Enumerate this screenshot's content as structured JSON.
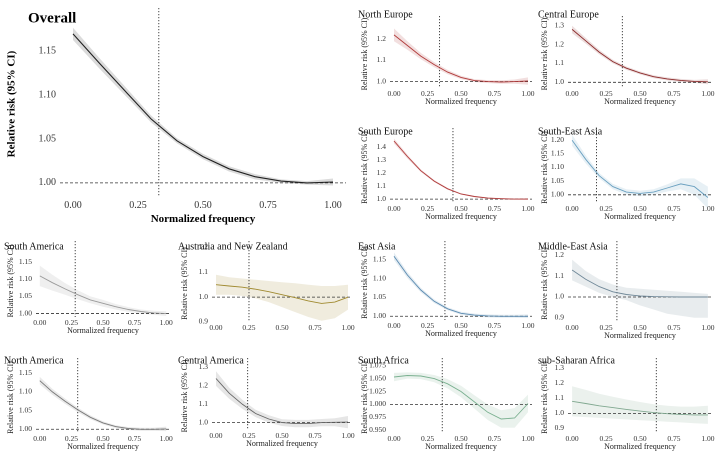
{
  "chart_data": [
    {
      "type": "line",
      "title": "Overall",
      "xlabel": "Normalized frequency",
      "ylabel": "Relative risk (95% CI)",
      "xlim": [
        -0.05,
        1.05
      ],
      "ylim": [
        0.985,
        1.195
      ],
      "xticks": [
        0,
        0.25,
        0.5,
        0.75,
        1
      ],
      "xtick_labels": [
        "0.00",
        "0.25",
        "0.50",
        "0.75",
        "1.00"
      ],
      "yticks": [
        1.0,
        1.05,
        1.1,
        1.15
      ],
      "ytick_labels": [
        "1.00",
        "1.05",
        "1.10",
        "1.15"
      ],
      "vline": 0.33,
      "ref": 1.0,
      "color": "#222222",
      "x": [
        0,
        0.1,
        0.2,
        0.3,
        0.4,
        0.5,
        0.6,
        0.7,
        0.8,
        0.9,
        1.0
      ],
      "y": [
        1.17,
        1.137,
        1.105,
        1.073,
        1.048,
        1.03,
        1.016,
        1.007,
        1.002,
        1.0,
        1.001
      ],
      "lower": [
        1.163,
        1.131,
        1.1,
        1.069,
        1.045,
        1.027,
        1.013,
        1.004,
        1.0,
        0.998,
        0.997
      ],
      "upper": [
        1.177,
        1.143,
        1.11,
        1.077,
        1.051,
        1.033,
        1.019,
        1.01,
        1.004,
        1.002,
        1.005
      ]
    },
    {
      "type": "line",
      "title": "North Europe",
      "xlabel": "Normalized frequency",
      "ylabel": "Relative risk (95% CI)",
      "xlim": [
        -0.03,
        1.03
      ],
      "ylim": [
        0.97,
        1.29
      ],
      "xticks": [
        0,
        0.25,
        0.5,
        0.75,
        1
      ],
      "xtick_labels": [
        "0.00",
        "0.25",
        "0.50",
        "0.75",
        "1.00"
      ],
      "yticks": [
        1.0,
        1.1,
        1.2
      ],
      "ytick_labels": [
        "1.0",
        "1.1",
        "1.2"
      ],
      "vline": 0.34,
      "ref": 1.0,
      "color": "#b03a3a",
      "x": [
        0,
        0.1,
        0.2,
        0.3,
        0.4,
        0.5,
        0.6,
        0.7,
        0.8,
        0.9,
        1.0
      ],
      "y": [
        1.22,
        1.17,
        1.12,
        1.08,
        1.045,
        1.02,
        1.005,
        1.0,
        0.998,
        1.0,
        1.003
      ],
      "lower": [
        1.19,
        1.15,
        1.105,
        1.068,
        1.035,
        1.012,
        0.998,
        0.993,
        0.99,
        0.99,
        0.985
      ],
      "upper": [
        1.25,
        1.19,
        1.135,
        1.092,
        1.055,
        1.028,
        1.012,
        1.007,
        1.006,
        1.01,
        1.02
      ]
    },
    {
      "type": "line",
      "title": "Central Europe",
      "xlabel": "Normalized frequency",
      "ylabel": "Relative risk (95% CI)",
      "xlim": [
        -0.03,
        1.03
      ],
      "ylim": [
        0.97,
        1.33
      ],
      "xticks": [
        0,
        0.25,
        0.5,
        0.75,
        1
      ],
      "xtick_labels": [
        "0.00",
        "0.25",
        "0.50",
        "0.75",
        "1.00"
      ],
      "yticks": [
        1.0,
        1.1,
        1.2,
        1.3
      ],
      "ytick_labels": [
        "1.0",
        "1.1",
        "1.2",
        "1.3"
      ],
      "vline": 0.37,
      "ref": 1.0,
      "color": "#8b2a2a",
      "x": [
        0,
        0.1,
        0.2,
        0.3,
        0.4,
        0.5,
        0.6,
        0.7,
        0.8,
        0.9,
        1.0
      ],
      "y": [
        1.28,
        1.22,
        1.16,
        1.11,
        1.075,
        1.05,
        1.03,
        1.018,
        1.01,
        1.005,
        1.003
      ],
      "lower": [
        1.26,
        1.205,
        1.148,
        1.1,
        1.066,
        1.042,
        1.022,
        1.01,
        1.002,
        0.997,
        0.99
      ],
      "upper": [
        1.3,
        1.235,
        1.172,
        1.12,
        1.084,
        1.058,
        1.038,
        1.026,
        1.018,
        1.013,
        1.016
      ]
    },
    {
      "type": "line",
      "title": "South Europe",
      "xlabel": "Normalized frequency",
      "ylabel": "Relative risk (95% CI)",
      "xlim": [
        -0.03,
        1.03
      ],
      "ylim": [
        0.97,
        1.52
      ],
      "xticks": [
        0,
        0.25,
        0.5,
        0.75,
        1
      ],
      "xtick_labels": [
        "0.00",
        "0.25",
        "0.50",
        "0.75",
        "1.00"
      ],
      "yticks": [
        1.0,
        1.1,
        1.2,
        1.3,
        1.4
      ],
      "ytick_labels": [
        "1.0",
        "1.1",
        "1.2",
        "1.3",
        "1.4"
      ],
      "vline": 0.44,
      "ref": 1.0,
      "color": "#b03a3a",
      "x": [
        0,
        0.1,
        0.2,
        0.3,
        0.4,
        0.5,
        0.6,
        0.7,
        0.8,
        0.9,
        1.0
      ],
      "y": [
        1.45,
        1.33,
        1.22,
        1.14,
        1.08,
        1.04,
        1.02,
        1.008,
        1.003,
        1.0,
        1.0
      ],
      "lower": [
        1.43,
        1.315,
        1.21,
        1.132,
        1.073,
        1.035,
        1.015,
        1.003,
        0.998,
        0.995,
        0.993
      ],
      "upper": [
        1.47,
        1.345,
        1.23,
        1.148,
        1.087,
        1.045,
        1.025,
        1.013,
        1.008,
        1.005,
        1.007
      ]
    },
    {
      "type": "line",
      "title": "South-East Asia",
      "xlabel": "Normalized frequency",
      "ylabel": "Relative risk (95% CI)",
      "xlim": [
        -0.03,
        1.03
      ],
      "ylim": [
        0.97,
        1.23
      ],
      "xticks": [
        0,
        0.25,
        0.5,
        0.75,
        1
      ],
      "xtick_labels": [
        "0.00",
        "0.25",
        "0.50",
        "0.75",
        "1.00"
      ],
      "yticks": [
        1.0,
        1.05,
        1.1,
        1.15,
        1.2
      ],
      "ytick_labels": [
        "1.00",
        "1.05",
        "1.10",
        "1.15",
        "1.20"
      ],
      "vline": 0.18,
      "ref": 1.0,
      "color": "#6aa0c0",
      "x": [
        0,
        0.1,
        0.2,
        0.3,
        0.4,
        0.5,
        0.6,
        0.7,
        0.8,
        0.9,
        1.0
      ],
      "y": [
        1.2,
        1.13,
        1.07,
        1.03,
        1.01,
        1.005,
        1.01,
        1.025,
        1.04,
        1.03,
        0.99
      ],
      "lower": [
        1.18,
        1.115,
        1.06,
        1.02,
        1.0,
        0.995,
        1.0,
        1.012,
        1.02,
        1.0,
        0.95
      ],
      "upper": [
        1.22,
        1.145,
        1.08,
        1.04,
        1.02,
        1.015,
        1.02,
        1.038,
        1.06,
        1.06,
        1.03
      ]
    },
    {
      "type": "line",
      "title": "South America",
      "xlabel": "Normalized frequency",
      "ylabel": "Relative risk (95% CI)",
      "xlim": [
        -0.03,
        1.03
      ],
      "ylim": [
        0.99,
        1.2
      ],
      "xticks": [
        0,
        0.25,
        0.5,
        0.75,
        1
      ],
      "xtick_labels": [
        "0.00",
        "0.25",
        "0.50",
        "0.75",
        "1.00"
      ],
      "yticks": [
        1.0,
        1.05,
        1.1,
        1.15
      ],
      "ytick_labels": [
        "1.00",
        "1.05",
        "1.10",
        "1.15"
      ],
      "vline": 0.28,
      "ref": 1.0,
      "color": "#9a9a9a",
      "x": [
        0,
        0.1,
        0.2,
        0.3,
        0.4,
        0.5,
        0.6,
        0.7,
        0.8,
        0.9,
        1.0
      ],
      "y": [
        1.11,
        1.09,
        1.072,
        1.055,
        1.04,
        1.03,
        1.02,
        1.012,
        1.006,
        1.002,
        1.0
      ],
      "lower": [
        1.08,
        1.067,
        1.055,
        1.042,
        1.03,
        1.02,
        1.012,
        1.005,
        1.0,
        0.996,
        0.993
      ],
      "upper": [
        1.14,
        1.113,
        1.089,
        1.068,
        1.05,
        1.04,
        1.028,
        1.019,
        1.012,
        1.008,
        1.007
      ]
    },
    {
      "type": "line",
      "title": "Australia and New Zealand",
      "xlabel": "",
      "ylabel": "Relative risk (95% CI)",
      "xlim": [
        -0.03,
        1.03
      ],
      "ylim": [
        0.9,
        1.21
      ],
      "xticks": [
        0,
        0.25,
        0.5,
        0.75,
        1
      ],
      "xtick_labels": [
        "0.00",
        "0.25",
        "0.50",
        "0.75",
        "1.00"
      ],
      "yticks": [
        0.9,
        1.0,
        1.1,
        1.2
      ],
      "ytick_labels": [
        "0.9",
        "1.0",
        "1.1",
        "1.2"
      ],
      "vline": 0.25,
      "ref": 1.0,
      "color": "#a08a30",
      "x": [
        0,
        0.1,
        0.2,
        0.3,
        0.4,
        0.5,
        0.6,
        0.7,
        0.8,
        0.9,
        1.0
      ],
      "y": [
        1.05,
        1.045,
        1.04,
        1.032,
        1.022,
        1.01,
        0.998,
        0.985,
        0.975,
        0.98,
        1.0
      ],
      "lower": [
        1.01,
        1.01,
        1.005,
        0.995,
        0.98,
        0.96,
        0.94,
        0.92,
        0.905,
        0.915,
        0.95
      ],
      "upper": [
        1.09,
        1.08,
        1.075,
        1.07,
        1.065,
        1.06,
        1.056,
        1.05,
        1.045,
        1.045,
        1.05
      ]
    },
    {
      "type": "line",
      "title": "East Asia",
      "xlabel": "Normalized frequency",
      "ylabel": "Relative risk (95% CI)",
      "xlim": [
        -0.03,
        1.03
      ],
      "ylim": [
        0.99,
        1.19
      ],
      "xticks": [
        0,
        0.25,
        0.5,
        0.75,
        1
      ],
      "xtick_labels": [
        "0.00",
        "0.25",
        "0.50",
        "0.75",
        "1.00"
      ],
      "yticks": [
        1.0,
        1.05,
        1.1,
        1.15
      ],
      "ytick_labels": [
        "1.00",
        "1.05",
        "1.10",
        "1.15"
      ],
      "vline": 0.38,
      "ref": 1.0,
      "color": "#5a8ab0",
      "x": [
        0,
        0.1,
        0.2,
        0.3,
        0.4,
        0.5,
        0.6,
        0.7,
        0.8,
        0.9,
        1.0
      ],
      "y": [
        1.16,
        1.11,
        1.07,
        1.04,
        1.02,
        1.008,
        1.003,
        1.001,
        1.0,
        1.0,
        1.0
      ],
      "lower": [
        1.15,
        1.102,
        1.064,
        1.035,
        1.016,
        1.004,
        0.999,
        0.997,
        0.996,
        0.996,
        0.995
      ],
      "upper": [
        1.17,
        1.118,
        1.076,
        1.045,
        1.024,
        1.012,
        1.007,
        1.005,
        1.004,
        1.004,
        1.005
      ]
    },
    {
      "type": "line",
      "title": "Middle-East Asia",
      "xlabel": "Normalized frequency",
      "ylabel": "Relative risk (95% CI)",
      "xlim": [
        -0.03,
        1.03
      ],
      "ylim": [
        0.88,
        1.25
      ],
      "xticks": [
        0,
        0.25,
        0.5,
        0.75,
        1
      ],
      "xtick_labels": [
        "0.00",
        "0.25",
        "0.50",
        "0.75",
        "1.00"
      ],
      "yticks": [
        0.9,
        1.0,
        1.1,
        1.2
      ],
      "ytick_labels": [
        "0.9",
        "1.0",
        "1.1",
        "1.2"
      ],
      "vline": 0.33,
      "ref": 1.0,
      "color": "#708898",
      "x": [
        0,
        0.1,
        0.2,
        0.3,
        0.4,
        0.5,
        0.6,
        0.7,
        0.8,
        0.9,
        1.0
      ],
      "y": [
        1.13,
        1.085,
        1.05,
        1.025,
        1.012,
        1.005,
        1.002,
        1.001,
        1.0,
        1.0,
        1.0
      ],
      "lower": [
        1.08,
        1.05,
        1.02,
        1.0,
        0.985,
        0.96,
        0.94,
        0.92,
        0.91,
        0.9,
        0.9
      ],
      "upper": [
        1.18,
        1.125,
        1.085,
        1.06,
        1.045,
        1.04,
        1.035,
        1.03,
        1.025,
        1.02,
        1.015
      ]
    },
    {
      "type": "line",
      "title": "North America",
      "xlabel": "Normalized frequency",
      "ylabel": "Relative risk (95% CI)",
      "xlim": [
        -0.03,
        1.03
      ],
      "ylim": [
        0.99,
        1.18
      ],
      "xticks": [
        0,
        0.25,
        0.5,
        0.75,
        1
      ],
      "xtick_labels": [
        "0.00",
        "0.25",
        "0.50",
        "0.75",
        "1.00"
      ],
      "yticks": [
        1.0,
        1.05,
        1.1,
        1.15
      ],
      "ytick_labels": [
        "1.00",
        "1.05",
        "1.10",
        "1.15"
      ],
      "vline": 0.3,
      "ref": 1.0,
      "color": "#777777",
      "x": [
        0,
        0.1,
        0.2,
        0.3,
        0.4,
        0.5,
        0.6,
        0.7,
        0.8,
        0.9,
        1.0
      ],
      "y": [
        1.13,
        1.1,
        1.075,
        1.052,
        1.032,
        1.017,
        1.007,
        1.002,
        1.0,
        1.0,
        1.001
      ],
      "lower": [
        1.12,
        1.092,
        1.068,
        1.046,
        1.027,
        1.013,
        1.003,
        0.998,
        0.996,
        0.996,
        0.995
      ],
      "upper": [
        1.14,
        1.108,
        1.082,
        1.058,
        1.037,
        1.021,
        1.011,
        1.006,
        1.004,
        1.004,
        1.007
      ]
    },
    {
      "type": "line",
      "title": "Central America",
      "xlabel": "Normalized frequency",
      "ylabel": "Relative risk (95% CI)",
      "xlim": [
        -0.03,
        1.03
      ],
      "ylim": [
        0.96,
        1.33
      ],
      "xticks": [
        0,
        0.25,
        0.5,
        0.75,
        1
      ],
      "xtick_labels": [
        "0.00",
        "0.25",
        "0.50",
        "0.75",
        "1.00"
      ],
      "yticks": [
        1.0,
        1.1,
        1.2,
        1.3
      ],
      "ytick_labels": [
        "1.0",
        "1.1",
        "1.2",
        "1.3"
      ],
      "vline": 0.24,
      "ref": 1.0,
      "color": "#666666",
      "x": [
        0,
        0.1,
        0.2,
        0.3,
        0.4,
        0.5,
        0.6,
        0.7,
        0.8,
        0.9,
        1.0
      ],
      "y": [
        1.24,
        1.16,
        1.1,
        1.05,
        1.02,
        1.0,
        0.995,
        0.995,
        1.0,
        1.002,
        1.003
      ],
      "lower": [
        1.2,
        1.13,
        1.075,
        1.03,
        1.0,
        0.982,
        0.975,
        0.975,
        0.98,
        0.98,
        0.97
      ],
      "upper": [
        1.28,
        1.19,
        1.125,
        1.07,
        1.04,
        1.018,
        1.015,
        1.015,
        1.02,
        1.024,
        1.036
      ]
    },
    {
      "type": "line",
      "title": "South Africa",
      "xlabel": "Normalized frequency",
      "ylabel": "Relative risk (95% CI)",
      "xlim": [
        -0.03,
        1.03
      ],
      "ylim": [
        0.945,
        1.082
      ],
      "xticks": [
        0,
        0.25,
        0.5,
        0.75,
        1
      ],
      "xtick_labels": [
        "0.00",
        "0.25",
        "0.50",
        "0.75",
        "1.00"
      ],
      "yticks": [
        0.95,
        0.975,
        1.0,
        1.025,
        1.05,
        1.075
      ],
      "ytick_labels": [
        "0.950",
        "0.975",
        "1.000",
        "1.025",
        "1.050",
        "1.075"
      ],
      "vline": 0.36,
      "ref": 1.0,
      "color": "#7ab090",
      "x": [
        0,
        0.1,
        0.2,
        0.3,
        0.4,
        0.5,
        0.6,
        0.7,
        0.8,
        0.9,
        1.0
      ],
      "y": [
        1.053,
        1.056,
        1.055,
        1.05,
        1.04,
        1.025,
        1.005,
        0.985,
        0.972,
        0.974,
        1.002
      ],
      "lower": [
        1.045,
        1.05,
        1.049,
        1.043,
        1.031,
        1.014,
        0.992,
        0.97,
        0.955,
        0.955,
        0.985
      ],
      "upper": [
        1.061,
        1.062,
        1.061,
        1.057,
        1.049,
        1.036,
        1.018,
        1.0,
        0.989,
        0.993,
        1.019
      ]
    },
    {
      "type": "line",
      "title": "sub-Saharan Africa",
      "xlabel": "Normalized frequency",
      "ylabel": "Relative risk (95% CI)",
      "xlim": [
        -0.03,
        1.03
      ],
      "ylim": [
        0.87,
        1.34
      ],
      "xticks": [
        0,
        0.25,
        0.5,
        0.75,
        1
      ],
      "xtick_labels": [
        "0.00",
        "0.25",
        "0.50",
        "0.75",
        "1.00"
      ],
      "yticks": [
        0.9,
        1.0,
        1.1,
        1.2,
        1.3
      ],
      "ytick_labels": [
        "0.9",
        "1.0",
        "1.1",
        "1.2",
        "1.3"
      ],
      "vline": 0.62,
      "ref": 1.0,
      "color": "#80a890",
      "x": [
        0,
        0.1,
        0.2,
        0.3,
        0.4,
        0.5,
        0.6,
        0.7,
        0.8,
        0.9,
        1.0
      ],
      "y": [
        1.08,
        1.065,
        1.05,
        1.038,
        1.026,
        1.015,
        1.005,
        0.998,
        0.993,
        0.99,
        0.99
      ],
      "lower": [
        0.98,
        0.975,
        0.97,
        0.965,
        0.96,
        0.955,
        0.95,
        0.945,
        0.94,
        0.935,
        0.93
      ],
      "upper": [
        1.18,
        1.155,
        1.13,
        1.11,
        1.092,
        1.075,
        1.06,
        1.05,
        1.045,
        1.045,
        1.05
      ]
    }
  ]
}
